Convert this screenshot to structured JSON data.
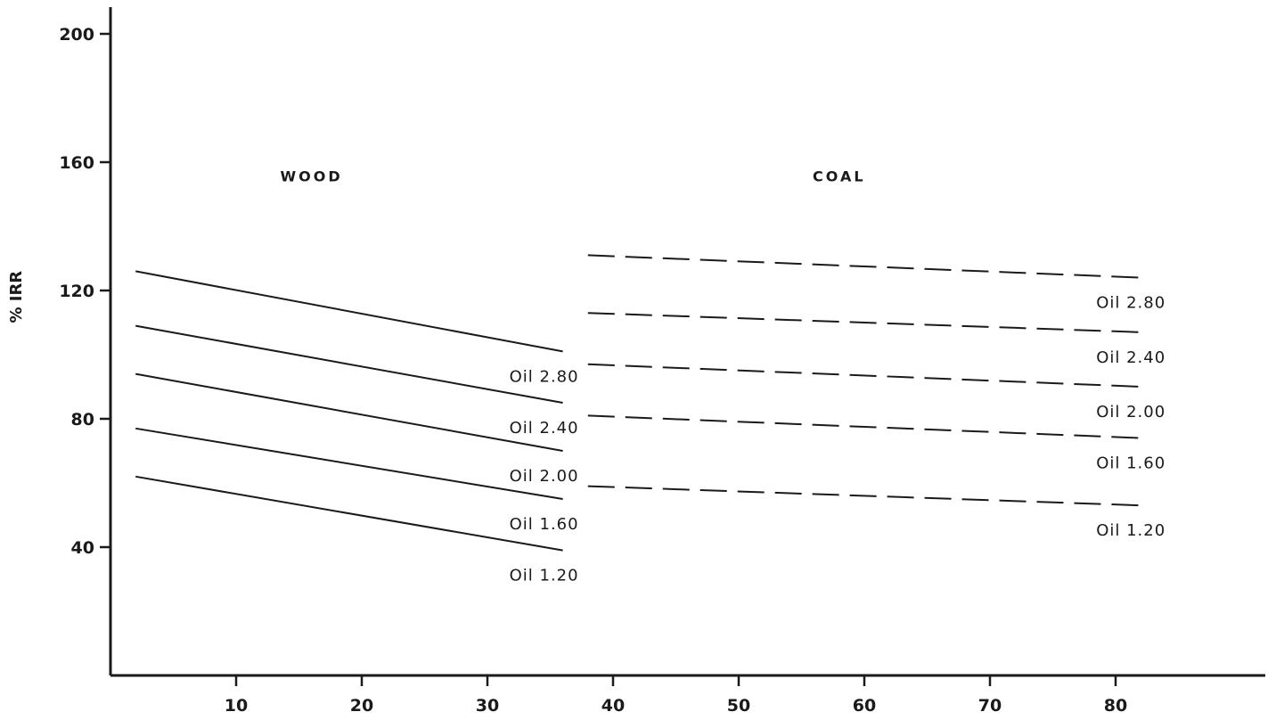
{
  "chart_data": {
    "type": "line",
    "title": "",
    "xlabel": "",
    "ylabel": "% IRR",
    "xlim": [
      0,
      90
    ],
    "ylim": [
      0,
      210
    ],
    "x_ticks": [
      10,
      20,
      30,
      40,
      50,
      60,
      70,
      80
    ],
    "x_tick_labels": [
      "10",
      "20",
      "30",
      "40",
      "50",
      "60",
      "70",
      "80"
    ],
    "y_ticks": [
      40,
      80,
      120,
      160,
      200
    ],
    "y_tick_labels": [
      "40",
      "80",
      "120",
      "160",
      "200"
    ],
    "grid": false,
    "legend": "none",
    "groups": [
      {
        "label": "WOOD",
        "line_style": "solid",
        "series": [
          {
            "name": "Oil  2.80",
            "x": [
              2,
              36
            ],
            "y": [
              126,
              101
            ]
          },
          {
            "name": "Oil  2.40",
            "x": [
              2,
              36
            ],
            "y": [
              109,
              85
            ]
          },
          {
            "name": "Oil  2.00",
            "x": [
              2,
              36
            ],
            "y": [
              94,
              70
            ]
          },
          {
            "name": "Oil  1.60",
            "x": [
              2,
              36
            ],
            "y": [
              77,
              55
            ]
          },
          {
            "name": "Oil  1.20",
            "x": [
              2,
              36
            ],
            "y": [
              62,
              39
            ]
          }
        ]
      },
      {
        "label": "COAL",
        "line_style": "dashed",
        "series": [
          {
            "name": "Oil  2.80",
            "x": [
              38,
              82
            ],
            "y": [
              131,
              124
            ]
          },
          {
            "name": "Oil  2.40",
            "x": [
              38,
              82
            ],
            "y": [
              113,
              107
            ]
          },
          {
            "name": "Oil  2.00",
            "x": [
              38,
              82
            ],
            "y": [
              97,
              90
            ]
          },
          {
            "name": "Oil  1.60",
            "x": [
              38,
              82
            ],
            "y": [
              81,
              74
            ]
          },
          {
            "name": "Oil  1.20",
            "x": [
              38,
              82
            ],
            "y": [
              59,
              53
            ]
          }
        ]
      }
    ]
  }
}
